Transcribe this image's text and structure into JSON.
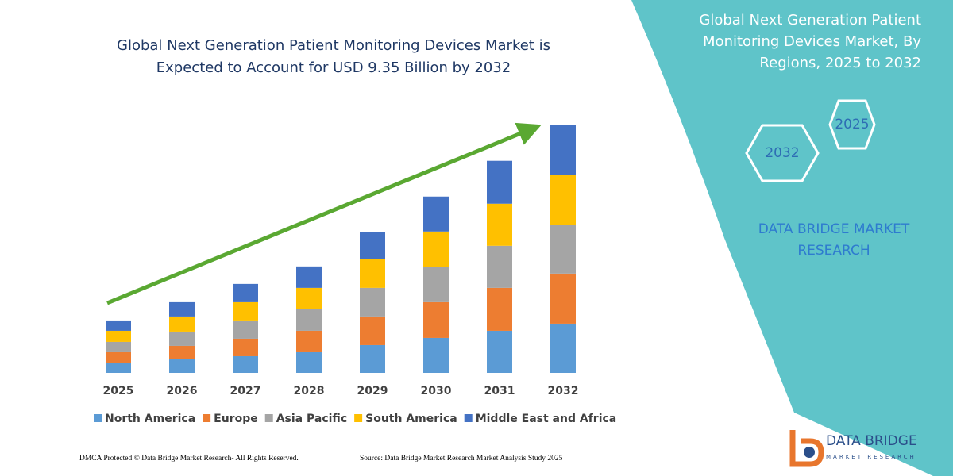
{
  "chart_data": {
    "type": "stacked_bar",
    "title": "Global Next Generation Patient Monitoring Devices Market is Expected to Account for USD 9.35 Billion by 2032",
    "categories": [
      "2025",
      "2026",
      "2027",
      "2028",
      "2029",
      "2030",
      "2031",
      "2032"
    ],
    "series": [
      {
        "name": "North America",
        "color": "#5b9bd5",
        "values": [
          0.39,
          0.51,
          0.63,
          0.78,
          1.05,
          1.32,
          1.59,
          1.86
        ]
      },
      {
        "name": "Europe",
        "color": "#ed7d31",
        "values": [
          0.39,
          0.51,
          0.66,
          0.81,
          1.08,
          1.35,
          1.62,
          1.89
        ]
      },
      {
        "name": "Asia Pacific",
        "color": "#a5a5a5",
        "values": [
          0.39,
          0.54,
          0.69,
          0.81,
          1.08,
          1.32,
          1.59,
          1.83
        ]
      },
      {
        "name": "South America",
        "color": "#ffc000",
        "values": [
          0.42,
          0.57,
          0.69,
          0.81,
          1.08,
          1.35,
          1.59,
          1.89
        ]
      },
      {
        "name": "Middle East and Africa",
        "color": "#4472c4",
        "values": [
          0.39,
          0.54,
          0.69,
          0.81,
          1.02,
          1.32,
          1.62,
          1.88
        ]
      }
    ],
    "legend": "bottom"
  },
  "panel": {
    "title": "Global Next Generation Patient Monitoring Devices Market, By Regions, 2025 to 2032",
    "hex_labels": [
      "2025",
      "2032"
    ],
    "brand": "DATA BRIDGE MARKET RESEARCH"
  },
  "footer": {
    "left": "DMCA Protected © Data Bridge Market Research-  All Rights Reserved.",
    "right": "Source: Data Bridge Market Research  Market Analysis Study 2025"
  },
  "logo": {
    "name": "DATA BRIDGE",
    "tagline": "MARKET RESEARCH"
  }
}
